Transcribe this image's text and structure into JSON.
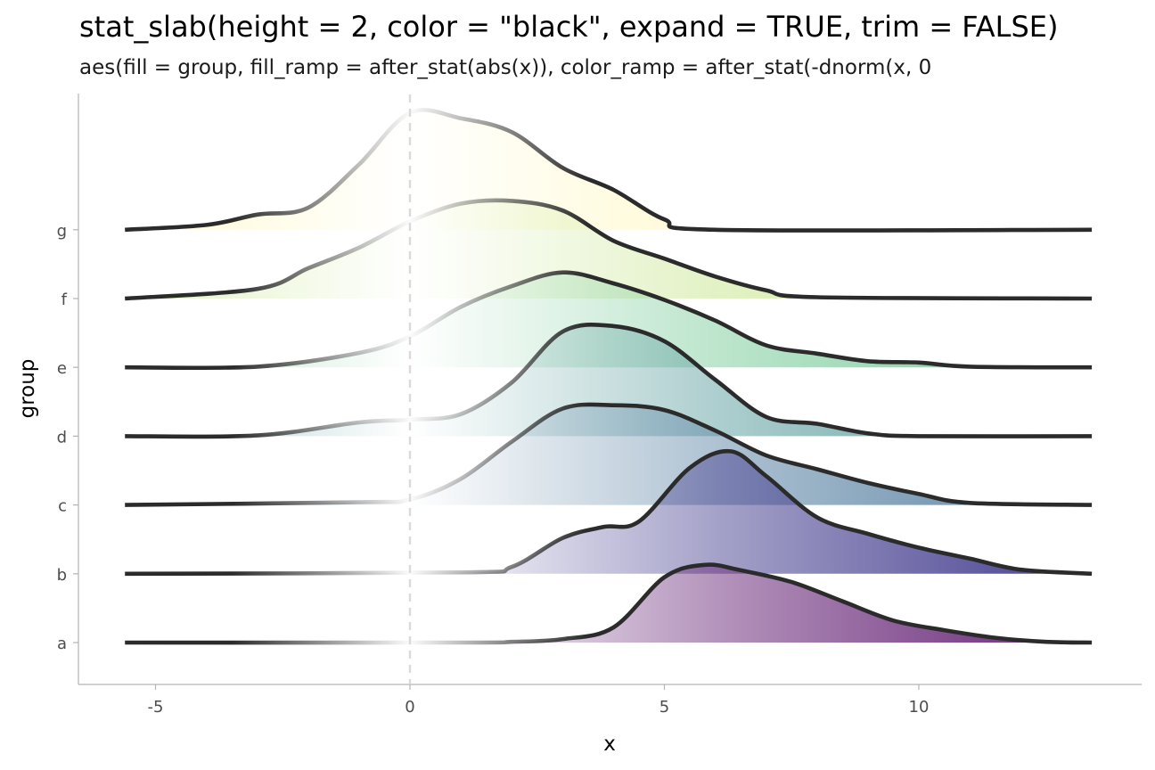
{
  "title": "stat_slab(height = 2, color = \"black\", expand = TRUE, trim = FALSE)",
  "subtitle": "aes(fill = group, fill_ramp = after_stat(abs(x)), color_ramp = after_stat(-dnorm(x, 0",
  "chart_data": {
    "type": "area",
    "xlabel": "x",
    "ylabel": "group",
    "xlim": [
      -6.5,
      14.4
    ],
    "x_ticks": [
      -5,
      0,
      5,
      10
    ],
    "x_tick_labels": [
      "-5",
      "0",
      "5",
      "10"
    ],
    "categories": [
      "a",
      "b",
      "c",
      "d",
      "e",
      "f",
      "g"
    ],
    "reference_line": {
      "x": 0,
      "style": "dashed",
      "color": "#d9d9d9"
    },
    "outline_color": "#2b2b2b",
    "grid": false,
    "series": [
      {
        "name": "a",
        "color": "#6a2a7a",
        "values": [
          [
            -5.6,
            0
          ],
          [
            1,
            0
          ],
          [
            2,
            0.01
          ],
          [
            3,
            0.05
          ],
          [
            4,
            0.22
          ],
          [
            5,
            0.95
          ],
          [
            5.8,
            1.13
          ],
          [
            6.5,
            1.05
          ],
          [
            7.5,
            0.88
          ],
          [
            8.5,
            0.6
          ],
          [
            9.5,
            0.32
          ],
          [
            10.5,
            0.18
          ],
          [
            11.5,
            0.07
          ],
          [
            12.5,
            0.01
          ],
          [
            13.4,
            0
          ]
        ]
      },
      {
        "name": "b",
        "color": "#4b4593",
        "values": [
          [
            -5.6,
            0
          ],
          [
            1,
            0.02
          ],
          [
            2,
            0.1
          ],
          [
            3,
            0.52
          ],
          [
            3.8,
            0.68
          ],
          [
            4.5,
            0.76
          ],
          [
            5.5,
            1.54
          ],
          [
            6.3,
            1.78
          ],
          [
            7,
            1.42
          ],
          [
            8,
            0.82
          ],
          [
            9,
            0.58
          ],
          [
            10,
            0.38
          ],
          [
            11,
            0.22
          ],
          [
            12,
            0.06
          ],
          [
            13.4,
            0
          ]
        ]
      },
      {
        "name": "c",
        "color": "#5e86a6",
        "values": [
          [
            -5.6,
            0
          ],
          [
            -1,
            0.04
          ],
          [
            0,
            0.08
          ],
          [
            1,
            0.38
          ],
          [
            2,
            0.92
          ],
          [
            3,
            1.4
          ],
          [
            4,
            1.45
          ],
          [
            5,
            1.38
          ],
          [
            6,
            1.08
          ],
          [
            7,
            0.72
          ],
          [
            8,
            0.52
          ],
          [
            9,
            0.32
          ],
          [
            10,
            0.16
          ],
          [
            11,
            0.03
          ],
          [
            13.4,
            0
          ]
        ]
      },
      {
        "name": "d",
        "color": "#5d9e9f",
        "values": [
          [
            -5.6,
            0
          ],
          [
            -3,
            0.01
          ],
          [
            -1,
            0.2
          ],
          [
            0,
            0.24
          ],
          [
            1,
            0.32
          ],
          [
            2,
            0.78
          ],
          [
            3,
            1.52
          ],
          [
            4,
            1.6
          ],
          [
            5,
            1.38
          ],
          [
            6,
            0.82
          ],
          [
            7,
            0.28
          ],
          [
            8,
            0.18
          ],
          [
            9,
            0.04
          ],
          [
            10,
            0
          ],
          [
            13.4,
            0
          ]
        ]
      },
      {
        "name": "e",
        "color": "#7bcc9b",
        "values": [
          [
            -5.6,
            0
          ],
          [
            -3,
            0.01
          ],
          [
            -1,
            0.21
          ],
          [
            0,
            0.45
          ],
          [
            1,
            0.88
          ],
          [
            2,
            1.18
          ],
          [
            3,
            1.38
          ],
          [
            4,
            1.22
          ],
          [
            5,
            0.98
          ],
          [
            6,
            0.68
          ],
          [
            7,
            0.32
          ],
          [
            8,
            0.2
          ],
          [
            9,
            0.09
          ],
          [
            10,
            0.07
          ],
          [
            11,
            0.01
          ],
          [
            13.4,
            0
          ]
        ]
      },
      {
        "name": "f",
        "color": "#c7e58c",
        "values": [
          [
            -5.6,
            0
          ],
          [
            -3,
            0.14
          ],
          [
            -2,
            0.44
          ],
          [
            -1,
            0.74
          ],
          [
            0,
            1.12
          ],
          [
            1,
            1.38
          ],
          [
            2,
            1.42
          ],
          [
            3,
            1.28
          ],
          [
            4,
            0.84
          ],
          [
            5,
            0.58
          ],
          [
            6,
            0.32
          ],
          [
            7,
            0.12
          ],
          [
            8,
            0.02
          ],
          [
            13.4,
            0
          ]
        ]
      },
      {
        "name": "g",
        "color": "#fff5a8",
        "values": [
          [
            -5.6,
            0
          ],
          [
            -4,
            0.07
          ],
          [
            -3,
            0.22
          ],
          [
            -2,
            0.32
          ],
          [
            -1,
            0.95
          ],
          [
            0,
            1.7
          ],
          [
            1,
            1.62
          ],
          [
            2,
            1.42
          ],
          [
            3,
            0.9
          ],
          [
            4,
            0.58
          ],
          [
            5,
            0.15
          ],
          [
            6,
            0
          ],
          [
            13.4,
            0
          ]
        ]
      }
    ]
  }
}
